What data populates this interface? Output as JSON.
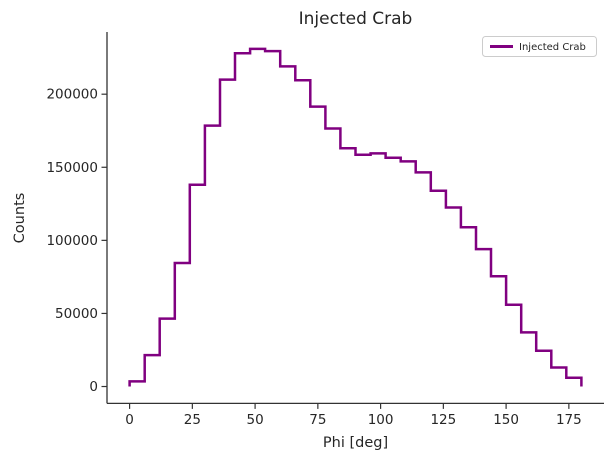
{
  "chart_data": {
    "type": "step-histogram",
    "title": "Injected Crab",
    "xlabel": "Phi [deg]",
    "ylabel": "Counts",
    "grid": false,
    "xlim": [
      -9,
      189
    ],
    "ylim": [
      -11550,
      242550
    ],
    "x_ticks": [
      0,
      25,
      50,
      75,
      100,
      125,
      150,
      175
    ],
    "y_ticks": [
      0,
      50000,
      100000,
      150000,
      200000
    ],
    "legend": {
      "position": "upper-right",
      "label": "Injected Crab"
    },
    "series": [
      {
        "name": "Injected Crab",
        "color": "#800080",
        "bin_edges": [
          0,
          6,
          12,
          18,
          24,
          30,
          36,
          42,
          48,
          54,
          60,
          66,
          72,
          78,
          84,
          90,
          96,
          102,
          108,
          114,
          120,
          126,
          132,
          138,
          144,
          150,
          156,
          162,
          168,
          174,
          180
        ],
        "counts": [
          3500,
          21500,
          46500,
          84500,
          138000,
          178500,
          210000,
          228000,
          231000,
          229500,
          219000,
          209500,
          191500,
          176500,
          163000,
          158500,
          159500,
          156500,
          154000,
          146500,
          134000,
          122500,
          109000,
          94000,
          75500,
          56000,
          37000,
          24500,
          13000,
          6000
        ]
      }
    ]
  },
  "style": {
    "background": "#ffffff",
    "text_color": "#262626",
    "spine_color": "#333333",
    "tick_color": "#333333",
    "legend_border_color": "#cccccc",
    "line_width": 2.5
  }
}
